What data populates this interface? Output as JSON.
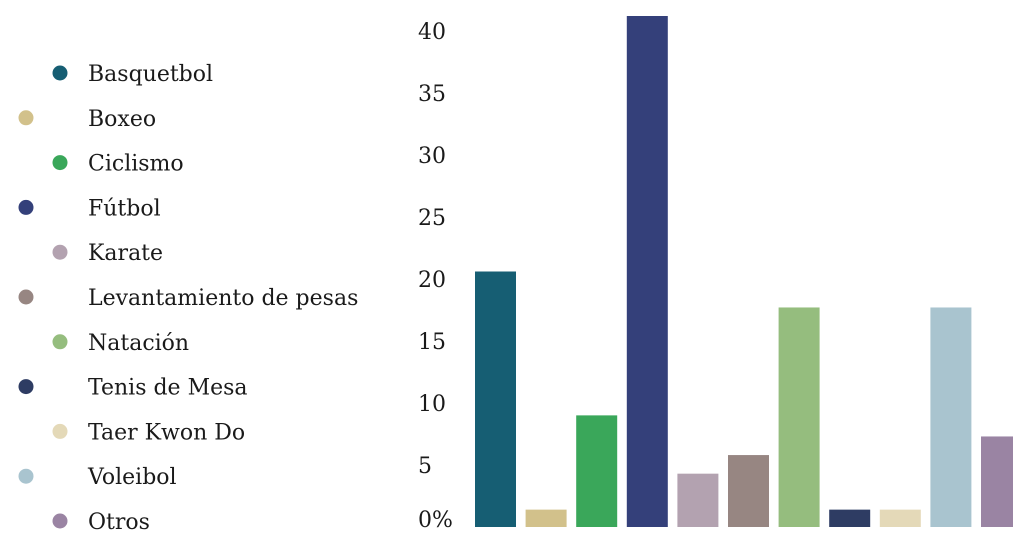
{
  "chart_data": {
    "type": "bar",
    "categories": [
      "Basquetbol",
      "Boxeo",
      "Ciclismo",
      "Fútbol",
      "Karate",
      "Levantamiento de pesas",
      "Natación",
      "Tenis de Mesa",
      "Taer Kwon Do",
      "Voleibol",
      "Otros"
    ],
    "values": [
      20.6,
      1.4,
      9.0,
      41.2,
      4.3,
      5.8,
      17.7,
      1.4,
      1.4,
      17.7,
      7.3
    ],
    "colors": [
      "#165e73",
      "#d2c18b",
      "#3aa75a",
      "#34407a",
      "#b3a2b0",
      "#978682",
      "#95bd7e",
      "#2e3c63",
      "#e4d9b8",
      "#a9c4cf",
      "#9a84a3"
    ],
    "yticks": [
      "0%",
      "5",
      "10",
      "15",
      "20",
      "25",
      "30",
      "35",
      "40"
    ],
    "ylim": [
      0,
      41.2
    ],
    "title": "",
    "xlabel": "",
    "ylabel": "",
    "legend_position": "left",
    "grid": false
  }
}
